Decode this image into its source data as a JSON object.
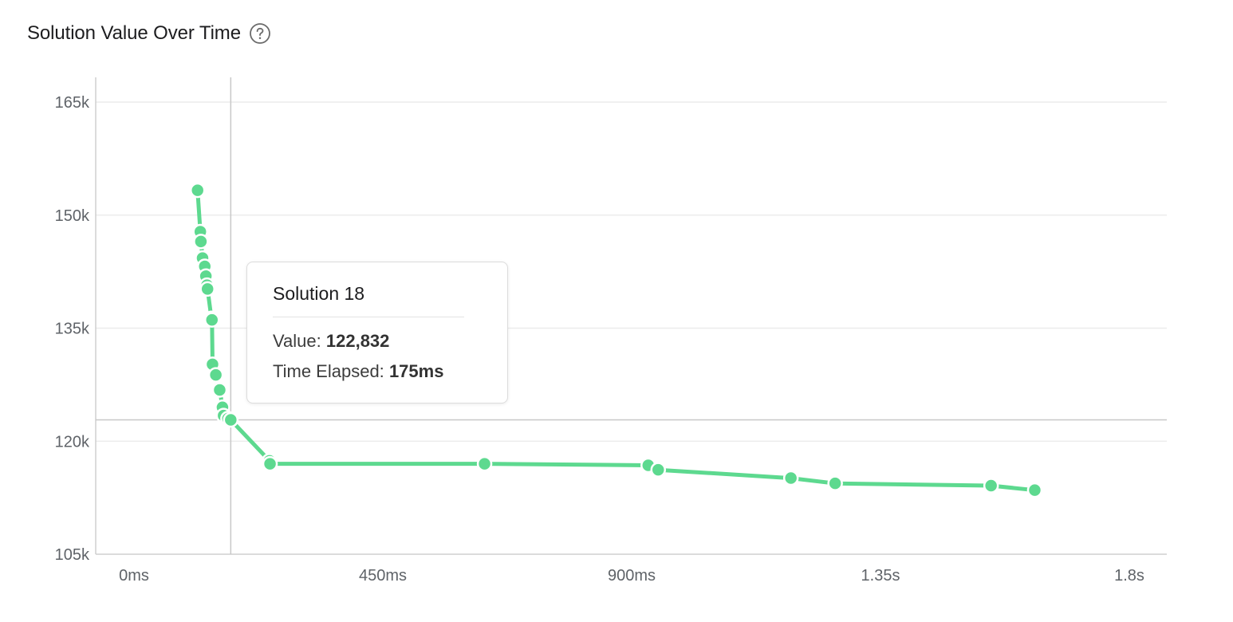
{
  "header": {
    "title": "Solution Value Over Time",
    "help_icon": "question-circle-icon"
  },
  "colors": {
    "series": "#5dd98f",
    "grid": "#ececec",
    "axis": "#cfcfcf",
    "crosshair": "#c8c8c8"
  },
  "chart_data": {
    "type": "line",
    "title": "Solution Value Over Time",
    "xlabel": "",
    "ylabel": "",
    "xlim": [
      0,
      1800
    ],
    "ylim": [
      105000,
      168000
    ],
    "x_ticks": [
      {
        "value": 0,
        "label": "0ms"
      },
      {
        "value": 450,
        "label": "450ms"
      },
      {
        "value": 900,
        "label": "900ms"
      },
      {
        "value": 1350,
        "label": "1.35s"
      },
      {
        "value": 1800,
        "label": "1.8s"
      }
    ],
    "y_ticks": [
      {
        "value": 105000,
        "label": "105k"
      },
      {
        "value": 120000,
        "label": "120k"
      },
      {
        "value": 135000,
        "label": "135k"
      },
      {
        "value": 150000,
        "label": "150k"
      },
      {
        "value": 165000,
        "label": "165k"
      }
    ],
    "grid": true,
    "legend": "none",
    "series": [
      {
        "points": [
          {
            "x": 115,
            "y": 153300
          },
          {
            "x": 120,
            "y": 147800
          },
          {
            "x": 121,
            "y": 146500
          },
          {
            "x": 124,
            "y": 144300
          },
          {
            "x": 128,
            "y": 143200
          },
          {
            "x": 130,
            "y": 141900
          },
          {
            "x": 132,
            "y": 140700
          },
          {
            "x": 133,
            "y": 140200
          },
          {
            "x": 140,
            "y": 136300
          },
          {
            "x": 141,
            "y": 136100
          },
          {
            "x": 142,
            "y": 130200
          },
          {
            "x": 148,
            "y": 128800
          },
          {
            "x": 153,
            "y": 127000
          },
          {
            "x": 155,
            "y": 126800
          },
          {
            "x": 160,
            "y": 124500
          },
          {
            "x": 162,
            "y": 123400
          },
          {
            "x": 170,
            "y": 123000
          },
          {
            "x": 175,
            "y": 122832
          },
          {
            "x": 245,
            "y": 117400
          },
          {
            "x": 246,
            "y": 117000
          },
          {
            "x": 634,
            "y": 117000
          },
          {
            "x": 930,
            "y": 116800
          },
          {
            "x": 948,
            "y": 116200
          },
          {
            "x": 1188,
            "y": 115100
          },
          {
            "x": 1268,
            "y": 114400
          },
          {
            "x": 1550,
            "y": 114100
          },
          {
            "x": 1629,
            "y": 113500
          }
        ]
      }
    ],
    "crosshair": {
      "x": 175,
      "y": 122832
    }
  },
  "tooltip": {
    "title": "Solution 18",
    "value_label": "Value:",
    "value": "122,832",
    "time_label": "Time Elapsed:",
    "time": "175ms"
  }
}
